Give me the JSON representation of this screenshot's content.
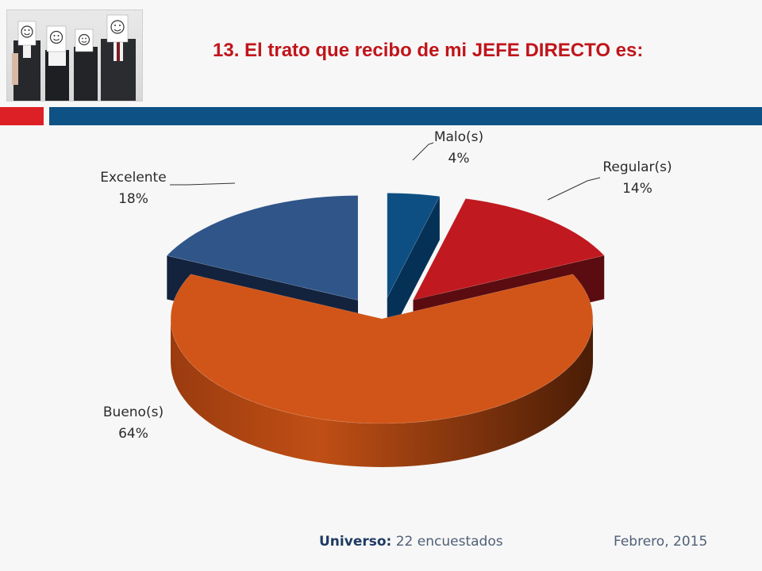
{
  "title": "13. El trato que recibo de mi JEFE DIRECTO es:",
  "colors": {
    "title": "#c0151b",
    "accent_red": "#dc2025",
    "accent_blue": "#0e5185"
  },
  "photo": {
    "icon": "smiley-faces-people-photo"
  },
  "chart_data": {
    "type": "pie",
    "style": "3d-exploded",
    "title": "",
    "slices": [
      {
        "label": "Malo(s)",
        "value": 4,
        "display": "4%",
        "color": "#0d4f83"
      },
      {
        "label": "Regular(s)",
        "value": 14,
        "display": "14%",
        "color": "#c0191f"
      },
      {
        "label": "Bueno(s)",
        "value": 64,
        "display": "64%",
        "color": "#d15518"
      },
      {
        "label": "Excelente",
        "value": 18,
        "display": "18%",
        "color": "#2f5589"
      }
    ]
  },
  "footer": {
    "universe_label": "Universo:",
    "universe_value": "22 encuestados",
    "date": "Febrero, 2015"
  }
}
